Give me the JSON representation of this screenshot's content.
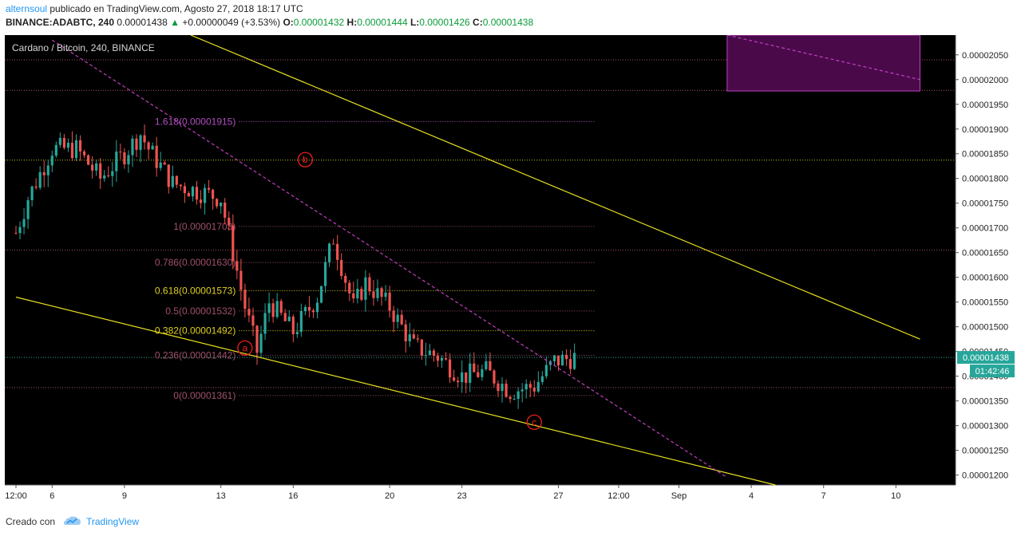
{
  "header": {
    "author": "alternsoul",
    "published_text": "publicado en TradingView.com, Agosto 27, 2018 18:17 UTC",
    "symbol_line": "BINANCE:ADABTC, 240",
    "last_price": "0.00001438",
    "change_arrow": "▲",
    "change": "+0.00000049 (+3.53%)",
    "open_label": "O:",
    "open": "0.00001432",
    "high_label": "H:",
    "high": "0.00001444",
    "low_label": "L:",
    "low": "0.00001426",
    "close_label": "C:",
    "close": "0.00001438"
  },
  "footer": {
    "created_with": "Creado con",
    "brand": "TradingView",
    "logo_icon": "tradingview-cloud-icon"
  },
  "chart_data": {
    "type": "candlestick",
    "title": "Cardano / Bitcoin, 240, BINANCE",
    "background": "#000000",
    "up_color": "#26a69a",
    "down_color": "#ef5350",
    "ylim": [
      1.18e-05,
      2.09e-05
    ],
    "y_ticks": [
      "0.00002050",
      "0.00002000",
      "0.00001950",
      "0.00001900",
      "0.00001850",
      "0.00001800",
      "0.00001750",
      "0.00001700",
      "0.00001650",
      "0.00001600",
      "0.00001550",
      "0.00001500",
      "0.00001450",
      "0.00001400",
      "0.00001350",
      "0.00001300",
      "0.00001250",
      "0.00001200"
    ],
    "x_ticks": [
      "12:00",
      "6",
      "9",
      "13",
      "16",
      "20",
      "23",
      "27",
      "12:00",
      "Sep",
      "4",
      "7",
      "10"
    ],
    "last_price_label": "0.00001438",
    "countdown_label": "01:42:46",
    "close_series_anchors": [
      {
        "x": "Aug 4 12:00",
        "y": 1.69e-05
      },
      {
        "x": "Aug 5",
        "y": 1.76e-05
      },
      {
        "x": "Aug 6",
        "y": 1.86e-05
      },
      {
        "x": "Aug 7",
        "y": 1.86e-05
      },
      {
        "x": "Aug 8",
        "y": 1.8e-05
      },
      {
        "x": "Aug 9",
        "y": 1.85e-05
      },
      {
        "x": "Aug 9 16:00",
        "y": 1.89e-05
      },
      {
        "x": "Aug 10",
        "y": 1.86e-05
      },
      {
        "x": "Aug 11",
        "y": 1.79e-05
      },
      {
        "x": "Aug 12",
        "y": 1.775e-05
      },
      {
        "x": "Aug 13",
        "y": 1.76e-05
      },
      {
        "x": "Aug 14",
        "y": 1.54e-05
      },
      {
        "x": "Aug 14 12:00",
        "y": 1.45e-05
      },
      {
        "x": "Aug 15",
        "y": 1.55e-05
      },
      {
        "x": "Aug 16",
        "y": 1.49e-05
      },
      {
        "x": "Aug 17",
        "y": 1.56e-05
      },
      {
        "x": "Aug 17 16:00",
        "y": 1.68e-05
      },
      {
        "x": "Aug 18 12:00",
        "y": 1.54e-05
      },
      {
        "x": "Aug 19",
        "y": 1.59e-05
      },
      {
        "x": "Aug 20",
        "y": 1.54e-05
      },
      {
        "x": "Aug 21",
        "y": 1.46e-05
      },
      {
        "x": "Aug 22",
        "y": 1.44e-05
      },
      {
        "x": "Aug 23",
        "y": 1.4e-05
      },
      {
        "x": "Aug 24",
        "y": 1.41e-05
      },
      {
        "x": "Aug 25",
        "y": 1.37e-05
      },
      {
        "x": "Aug 26",
        "y": 1.38e-05
      },
      {
        "x": "Aug 26 20:00",
        "y": 1.43e-05
      },
      {
        "x": "Aug 27 16:00",
        "y": 1.438e-05
      }
    ],
    "fib_levels": [
      {
        "ratio": "1.618",
        "price": 1.915e-05,
        "label": "1.618(0.00001915)",
        "color": "#b04ec0"
      },
      {
        "ratio": "1",
        "price": 1.703e-05,
        "label": "1(0.00001703)",
        "color": "#a0506a"
      },
      {
        "ratio": "0.786",
        "price": 1.63e-05,
        "label": "0.786(0.00001630)",
        "color": "#a0506a"
      },
      {
        "ratio": "0.618",
        "price": 1.573e-05,
        "label": "0.618(0.00001573)",
        "color": "#e0d020"
      },
      {
        "ratio": "0.5",
        "price": 1.532e-05,
        "label": "0.5(0.00001532)",
        "color": "#a0506a"
      },
      {
        "ratio": "0.382",
        "price": 1.492e-05,
        "label": "0.382(0.00001492)",
        "color": "#e0d020"
      },
      {
        "ratio": "0.236",
        "price": 1.442e-05,
        "label": "0.236(0.00001442)",
        "color": "#a0506a"
      },
      {
        "ratio": "0",
        "price": 1.361e-05,
        "label": "0(0.00001361)",
        "color": "#a0506a"
      }
    ],
    "horizontal_lines": [
      {
        "price": 2.04e-05,
        "color": "#a0506a"
      },
      {
        "price": 1.978e-05,
        "color": "#a0506a"
      },
      {
        "price": 1.837e-05,
        "color": "#c8c020"
      },
      {
        "price": 1.655e-05,
        "color": "#a0506a"
      },
      {
        "price": 1.438e-05,
        "color": "#26a69a"
      },
      {
        "price": 1.377e-05,
        "color": "#a0506a"
      }
    ],
    "wave_labels": [
      "a",
      "b",
      "c"
    ],
    "trendlines": [
      {
        "name": "upper-channel",
        "color": "#e8e020",
        "style": "solid",
        "from": {
          "x": "Aug 11 18:00",
          "y": 2.09e-05
        },
        "to": {
          "x": "Sep 11",
          "y": 1.475e-05
        }
      },
      {
        "name": "lower-channel",
        "color": "#e8e020",
        "style": "solid",
        "from": {
          "x": "Aug 4 12:00",
          "y": 1.56e-05
        },
        "to": {
          "x": "Sep 5",
          "y": 1.18e-05
        }
      },
      {
        "name": "descending-resistance",
        "color": "#c040c0",
        "style": "dashed",
        "from": {
          "x": "Aug 6",
          "y": 2.08e-05
        },
        "to": {
          "x": "Sep 3",
          "y": 1.195e-05
        }
      },
      {
        "name": "target-box-diagonal",
        "color": "#c040c0",
        "style": "dashed",
        "from": {
          "x": "Sep 3",
          "y": 2.09e-05
        },
        "to": {
          "x": "Sep 11",
          "y": 2e-05
        }
      }
    ],
    "target_box": {
      "price_from": 1.977e-05,
      "price_to": 2.09e-05,
      "x_from": "Sep 3",
      "x_to": "Sep 11",
      "fill": "#4a0a4a",
      "stroke": "#c040c0"
    }
  }
}
